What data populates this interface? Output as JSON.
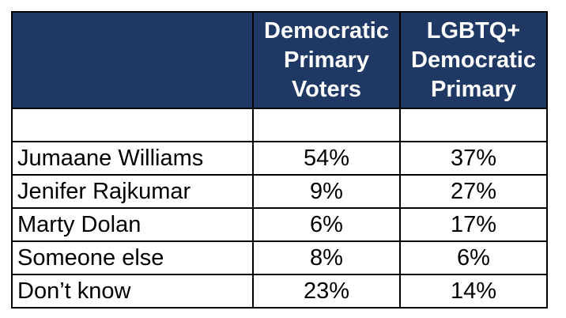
{
  "chart_data": {
    "type": "table",
    "columns": [
      {
        "lines": [
          "Democratic",
          "Primary",
          "Voters"
        ]
      },
      {
        "lines": [
          "LGBTQ+",
          "Democratic",
          "Primary"
        ]
      }
    ],
    "rows": [
      {
        "label": "Jumaane Williams",
        "values": [
          "54%",
          "37%"
        ]
      },
      {
        "label": "Jenifer Rajkumar",
        "values": [
          "9%",
          "27%"
        ]
      },
      {
        "label": "Marty Dolan",
        "values": [
          "6%",
          "17%"
        ]
      },
      {
        "label": "Someone else",
        "values": [
          "8%",
          "6%"
        ]
      },
      {
        "label": "Don’t know",
        "values": [
          "23%",
          "14%"
        ]
      }
    ],
    "header_color": "#1f3864"
  }
}
